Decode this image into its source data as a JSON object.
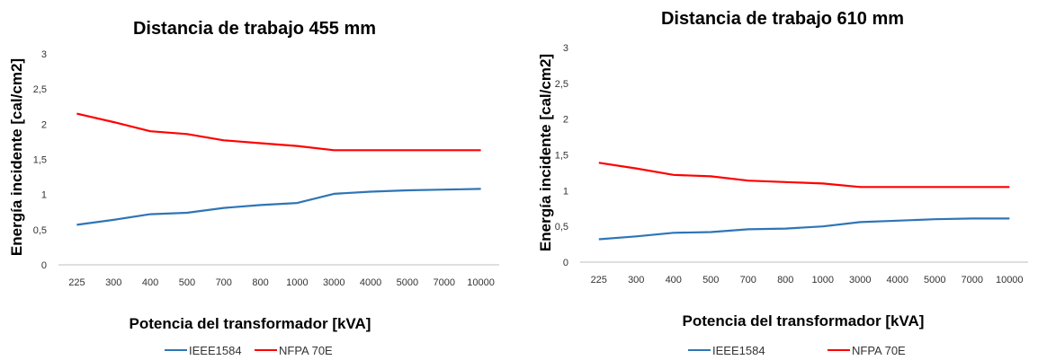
{
  "colors": {
    "ieee": "#2e75b6",
    "nfpa": "#ff0000",
    "axis": "#bfbfbf"
  },
  "chart_data": [
    {
      "type": "line",
      "title": "Distancia de trabajo 455 mm",
      "xlabel": "Potencia del transformador [kVA]",
      "ylabel": "Energía incidente [cal/cm2]",
      "categories": [
        "225",
        "300",
        "400",
        "500",
        "700",
        "800",
        "1000",
        "3000",
        "4000",
        "5000",
        "7000",
        "10000"
      ],
      "yticks": [
        "0",
        "0,5",
        "1",
        "1,5",
        "2",
        "2,5",
        "3"
      ],
      "ylim": [
        0,
        3
      ],
      "grid": false,
      "legend_position": "bottom",
      "series": [
        {
          "name": "IEEE1584",
          "values": [
            0.57,
            0.64,
            0.72,
            0.74,
            0.81,
            0.85,
            0.88,
            1.01,
            1.04,
            1.06,
            1.07,
            1.08
          ]
        },
        {
          "name": "NFPA 70E",
          "values": [
            2.15,
            2.03,
            1.9,
            1.86,
            1.77,
            1.73,
            1.69,
            1.63,
            1.63,
            1.63,
            1.63,
            1.63
          ]
        }
      ]
    },
    {
      "type": "line",
      "title": "Distancia de trabajo 610 mm",
      "xlabel": "Potencia del transformador [kVA]",
      "ylabel": "Energía incidente [cal/cm2]",
      "categories": [
        "225",
        "300",
        "400",
        "500",
        "700",
        "800",
        "1000",
        "3000",
        "4000",
        "5000",
        "7000",
        "10000"
      ],
      "yticks": [
        "0",
        "0,5",
        "1",
        "1,5",
        "2",
        "2,5",
        "3"
      ],
      "ylim": [
        0,
        3
      ],
      "grid": false,
      "legend_position": "bottom",
      "series": [
        {
          "name": "IEEE1584",
          "values": [
            0.32,
            0.36,
            0.41,
            0.42,
            0.46,
            0.47,
            0.5,
            0.56,
            0.58,
            0.6,
            0.61,
            0.61
          ]
        },
        {
          "name": "NFPA 70E",
          "values": [
            1.39,
            1.31,
            1.22,
            1.2,
            1.14,
            1.12,
            1.1,
            1.05,
            1.05,
            1.05,
            1.05,
            1.05
          ]
        }
      ]
    }
  ]
}
